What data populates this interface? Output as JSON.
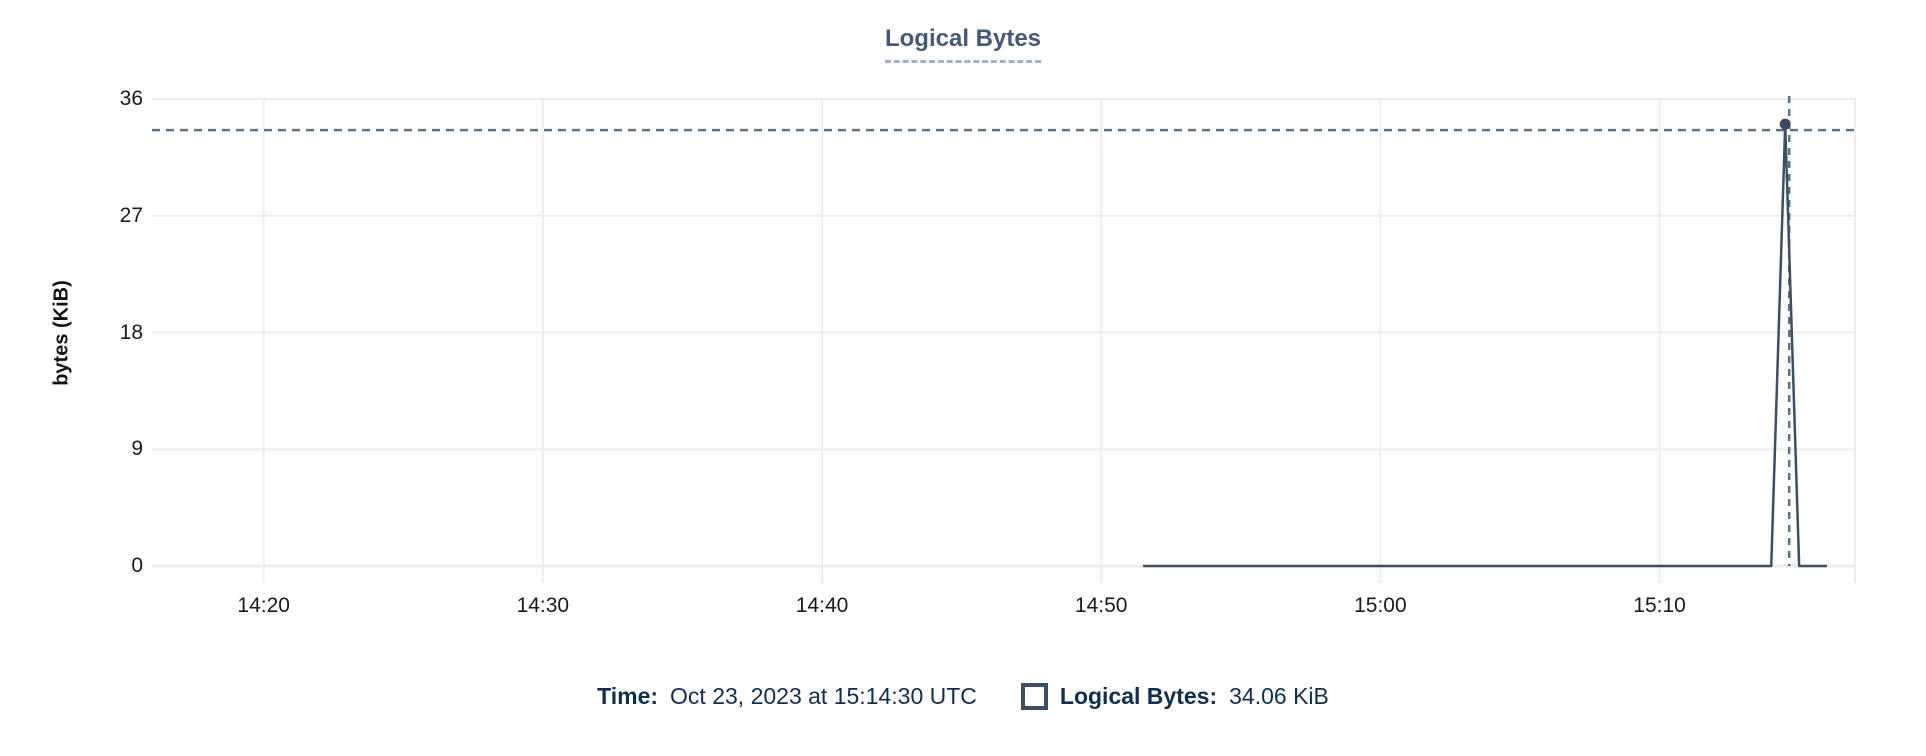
{
  "title": {
    "text": "Logical Bytes"
  },
  "tooltip": {
    "time_label": "Time:",
    "time_value": "Oct 23, 2023 at 15:14:30 UTC",
    "series_label": "Logical Bytes:",
    "series_value": "34.06 KiB",
    "series_swatch_icon": "square-outline-icon"
  },
  "colors": {
    "title": "#44597b",
    "title_underline": "#a3b1c4",
    "series_line": "#3d4f63",
    "point_marker": "#3b4a5e",
    "crosshair": "#5b7287",
    "gridline": "#ededee",
    "tick_label": "#1a1a1a",
    "tooltip_text": "#112e4e"
  },
  "chart_data": {
    "type": "line",
    "title": "Logical Bytes",
    "xlabel": "",
    "ylabel": "bytes (KiB)",
    "x_ticks": [
      "14:20",
      "14:30",
      "14:40",
      "14:50",
      "15:00",
      "15:10"
    ],
    "y_ticks": [
      0,
      9,
      18,
      27,
      36
    ],
    "ylim": [
      0,
      36
    ],
    "xlim": [
      "14:16",
      "15:17"
    ],
    "grid": true,
    "legend_position": "bottom",
    "series": [
      {
        "name": "Logical Bytes",
        "color": "#3d4f63",
        "points": [
          [
            "14:51:30",
            0
          ],
          [
            "15:14:00",
            0
          ],
          [
            "15:14:30",
            34.06
          ],
          [
            "15:15:00",
            0
          ],
          [
            "15:16:00",
            0
          ]
        ]
      }
    ],
    "selected_point": {
      "time": "15:14:30",
      "value": 34.06,
      "time_label": "Oct 23, 2023 at 15:14:30 UTC",
      "value_label": "34.06 KiB",
      "crosshair": true
    }
  }
}
